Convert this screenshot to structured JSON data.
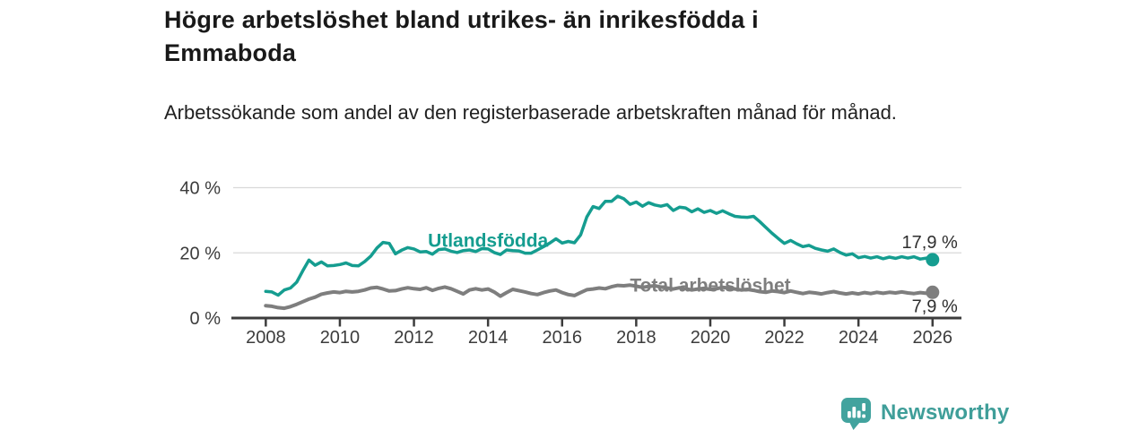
{
  "header": {
    "title": "Högre arbetslöshet bland utrikes- än inrikesfödda i Emmaboda",
    "subtitle": "Arbetssökande som andel av den registerbaserade arbetskraften månad för månad."
  },
  "footer": {
    "brand": "Newsworthy",
    "brand_color": "#3f9e99",
    "logo_icon": "bar-chart-speech-bubble"
  },
  "colors": {
    "series_utlandsfodda": "#159d90",
    "series_total": "#7e7e7e",
    "axis": "#3c3c3c",
    "grid": "#d9d9d9",
    "value_label": "#2e2e2e",
    "background": "#ffffff"
  },
  "chart_data": {
    "type": "line",
    "unit": "%",
    "ylim": [
      0,
      40
    ],
    "grid": "horizontal-only",
    "legend": "inline-labels-on-lines",
    "x_start_year": 2008,
    "x_step_months": 2,
    "y_ticks": [
      {
        "value": 0,
        "label": "0 %"
      },
      {
        "value": 20,
        "label": "20 %"
      },
      {
        "value": 40,
        "label": "40 %"
      }
    ],
    "x_ticks": [
      {
        "year": 2008,
        "label": "2008"
      },
      {
        "year": 2010,
        "label": "2010"
      },
      {
        "year": 2012,
        "label": "2012"
      },
      {
        "year": 2014,
        "label": "2014"
      },
      {
        "year": 2016,
        "label": "2016"
      },
      {
        "year": 2018,
        "label": "2018"
      },
      {
        "year": 2020,
        "label": "2020"
      },
      {
        "year": 2022,
        "label": "2022"
      },
      {
        "year": 2024,
        "label": "2024"
      },
      {
        "year": 2026,
        "label": "2026"
      }
    ],
    "series": [
      {
        "name": "Utlandsfödda",
        "key": "utlandsfodda",
        "color": "#159d90",
        "stroke_width": 3.5,
        "end_value": 17.9,
        "end_label": "17,9 %",
        "end_label_side": "above",
        "label_anchor": {
          "year": 2014.0,
          "pct": 21.8
        },
        "values": [
          8.2,
          8.0,
          7.0,
          8.6,
          9.2,
          11.0,
          14.5,
          17.8,
          16.2,
          17.2,
          16.0,
          16.1,
          16.4,
          16.9,
          16.1,
          16.0,
          17.3,
          19.0,
          21.5,
          23.2,
          22.9,
          19.7,
          20.8,
          21.6,
          21.2,
          20.3,
          20.4,
          19.6,
          21.0,
          21.2,
          20.5,
          20.1,
          20.7,
          20.9,
          20.4,
          21.3,
          21.2,
          20.1,
          19.5,
          20.9,
          20.7,
          20.6,
          19.9,
          19.9,
          20.9,
          21.9,
          23.0,
          24.3,
          23.0,
          23.5,
          23.1,
          25.5,
          31.0,
          34.2,
          33.6,
          35.8,
          35.8,
          37.4,
          36.6,
          34.9,
          35.6,
          34.3,
          35.4,
          34.7,
          34.3,
          34.8,
          33.0,
          34.0,
          33.8,
          32.6,
          33.5,
          32.4,
          33.0,
          32.1,
          32.9,
          32.0,
          31.2,
          31.0,
          30.9,
          31.2,
          29.6,
          27.8,
          26.0,
          24.4,
          22.9,
          23.8,
          22.8,
          21.9,
          22.3,
          21.4,
          20.9,
          20.5,
          21.2,
          20.1,
          19.3,
          19.7,
          18.5,
          18.9,
          18.4,
          18.8,
          18.2,
          18.7,
          18.3,
          18.8,
          18.4,
          18.8,
          18.1,
          18.4,
          17.9
        ]
      },
      {
        "name": "Total arbetslöshet",
        "key": "total",
        "color": "#7e7e7e",
        "stroke_width": 4,
        "end_value": 7.9,
        "end_label": "7,9 %",
        "end_label_side": "below",
        "label_anchor": {
          "year": 2020.0,
          "pct": 8.1
        },
        "values": [
          3.8,
          3.6,
          3.2,
          3.0,
          3.5,
          4.2,
          5.0,
          5.8,
          6.4,
          7.3,
          7.7,
          8.0,
          7.8,
          8.2,
          8.0,
          8.2,
          8.6,
          9.2,
          9.4,
          8.9,
          8.3,
          8.4,
          8.9,
          9.3,
          9.0,
          8.8,
          9.3,
          8.5,
          9.1,
          9.5,
          9.0,
          8.2,
          7.4,
          8.6,
          9.0,
          8.6,
          8.9,
          8.0,
          6.7,
          7.8,
          8.8,
          8.4,
          8.0,
          7.5,
          7.2,
          7.8,
          8.3,
          8.6,
          7.8,
          7.2,
          6.9,
          7.8,
          8.7,
          8.9,
          9.2,
          9.0,
          9.6,
          10.0,
          9.9,
          10.1,
          9.8,
          9.4,
          9.7,
          9.9,
          9.5,
          9.2,
          8.9,
          9.3,
          9.0,
          8.6,
          8.9,
          9.1,
          8.8,
          9.0,
          9.4,
          9.2,
          8.9,
          8.6,
          8.8,
          8.5,
          8.1,
          7.9,
          8.3,
          8.1,
          7.8,
          8.3,
          7.9,
          7.5,
          7.9,
          7.7,
          7.4,
          7.8,
          8.1,
          7.7,
          7.4,
          7.7,
          7.4,
          7.8,
          7.5,
          7.9,
          7.6,
          7.9,
          7.7,
          8.0,
          7.7,
          7.5,
          7.8,
          7.6,
          7.9
        ]
      }
    ]
  }
}
